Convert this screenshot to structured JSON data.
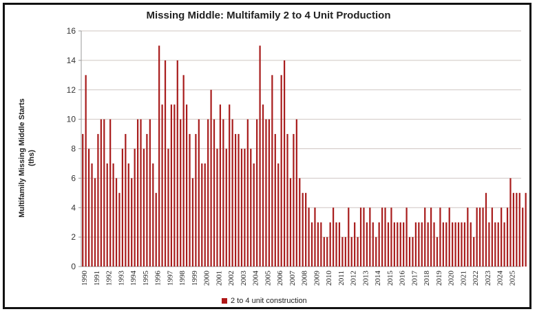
{
  "chart_data": {
    "type": "bar",
    "title": "Missing Middle: Multifamily 2 to 4 Unit Production",
    "xlabel": "",
    "ylabel": "Multifamily Missing Middle Starts (ths)",
    "ylim": [
      0,
      16
    ],
    "yticks": [
      0,
      2,
      4,
      6,
      8,
      10,
      12,
      14,
      16
    ],
    "grid": true,
    "legend": {
      "position": "bottom",
      "entries": [
        "2 to 4 unit construction"
      ]
    },
    "bar_color": "#a81c1c",
    "x_tick_labels": [
      "1990",
      "1991",
      "1992",
      "1993",
      "1994",
      "1995",
      "1996",
      "1997",
      "1998",
      "1999",
      "2000",
      "2001",
      "2002",
      "2003",
      "2004",
      "2005",
      "2006",
      "2007",
      "2008",
      "2009",
      "2010",
      "2011",
      "2012",
      "2013",
      "2014",
      "2015",
      "2016",
      "2017",
      "2018",
      "2019",
      "2020",
      "2021",
      "2022",
      "2023",
      "2024",
      "2025"
    ],
    "series": [
      {
        "name": "2 to 4 unit construction",
        "frequency": "quarterly",
        "start": "1990Q1",
        "values": [
          9,
          13,
          8,
          7,
          6,
          9,
          10,
          10,
          7,
          10,
          7,
          6,
          5,
          8,
          9,
          7,
          6,
          8,
          10,
          10,
          8,
          9,
          10,
          7,
          5,
          15,
          11,
          14,
          8,
          11,
          11,
          14,
          10,
          13,
          11,
          9,
          6,
          9,
          10,
          7,
          7,
          10,
          12,
          10,
          8,
          11,
          10,
          8,
          11,
          10,
          9,
          9,
          8,
          8,
          10,
          8,
          7,
          10,
          15,
          11,
          10,
          10,
          13,
          9,
          7,
          13,
          14,
          9,
          6,
          9,
          10,
          6,
          5,
          5,
          4,
          3,
          4,
          3,
          3,
          2,
          2,
          3,
          4,
          3,
          3,
          2,
          2,
          4,
          2,
          3,
          2,
          4,
          4,
          3,
          4,
          3,
          2,
          3,
          4,
          4,
          3,
          4,
          3,
          3,
          3,
          3,
          4,
          2,
          2,
          3,
          3,
          3,
          4,
          3,
          4,
          3,
          2,
          4,
          3,
          3,
          4,
          3,
          3,
          3,
          3,
          3,
          4,
          3,
          2,
          4,
          4,
          4,
          5,
          3,
          4,
          3,
          3,
          4,
          3,
          4,
          6,
          5,
          5,
          5,
          4,
          5
        ]
      }
    ]
  }
}
